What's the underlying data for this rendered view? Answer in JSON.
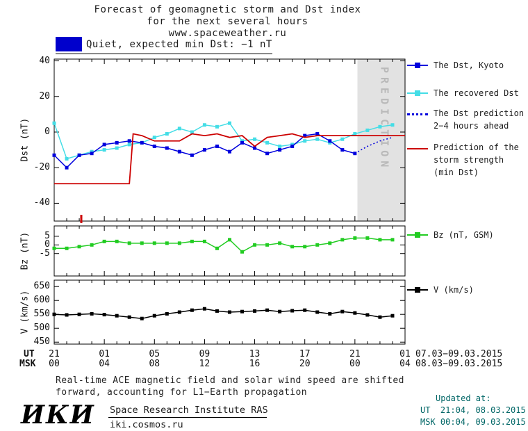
{
  "title": {
    "line1": "Forecast of geomagnetic storm and Dst index",
    "line2": "for the next several hours",
    "line3": "www.spaceweather.ru"
  },
  "banner": {
    "label": "Quiet, expected min Dst: −1 nT"
  },
  "colors": {
    "banner": "#0000cc",
    "kyoto": "#0000dd",
    "recovered": "#44dde6",
    "prediction_dotted": "#0000dd",
    "storm": "#cc0000",
    "bz": "#22cc22",
    "v": "#000000",
    "band": "#e2e2e2",
    "band_text": "#b9b9b9",
    "updated_text": "#006666"
  },
  "legend": {
    "dst_kyoto": "The Dst, Kyoto",
    "recovered": "The recovered Dst",
    "prediction": [
      "The Dst prediction",
      "2−4 hours ahead"
    ],
    "storm": [
      "Prediction of the",
      "storm strength",
      "(min Dst)"
    ],
    "bz": "Bz (nT, GSM)",
    "v": "V (km/s)"
  },
  "xaxis": {
    "ut_label": "UT",
    "msk_label": "MSK",
    "tick_hours": [
      0,
      4,
      8,
      12,
      16,
      20,
      24,
      28
    ],
    "ut_ticks": [
      "21",
      "01",
      "05",
      "09",
      "13",
      "17",
      "21",
      "01"
    ],
    "msk_ticks": [
      "00",
      "04",
      "08",
      "12",
      "16",
      "20",
      "00",
      "04"
    ],
    "ut_date": "07.03−09.03.2015",
    "msk_date": "08.03−09.03.2015"
  },
  "prediction_band": {
    "start_hour": 24.2,
    "end_hour": 28,
    "label": "PREDICTION"
  },
  "chart_data": [
    {
      "type": "line",
      "ylabel": "Dst (nT)",
      "ylim": [
        -50,
        41
      ],
      "yticks": [
        40,
        20,
        0,
        -20,
        -40
      ],
      "x_unit": "hours from 21:00 UT 07.03.2015",
      "series": [
        {
          "name": "The recovered Dst",
          "color_key": "recovered",
          "marker": true,
          "x": [
            0,
            1,
            2,
            3,
            4,
            5,
            6,
            7,
            8,
            9,
            10,
            11,
            12,
            13,
            14,
            15,
            16,
            17,
            18,
            19,
            20,
            21,
            22,
            23,
            24,
            25,
            26,
            27
          ],
          "values": [
            5,
            -15,
            -13,
            -11,
            -10,
            -9,
            -7,
            -6,
            -3,
            -1,
            2,
            0,
            4,
            3,
            5,
            -5,
            -4,
            -6,
            -8,
            -7,
            -5,
            -4,
            -6,
            -4,
            -1,
            1,
            3,
            4
          ]
        },
        {
          "name": "The Dst, Kyoto",
          "color_key": "kyoto",
          "marker": true,
          "x": [
            0,
            1,
            2,
            3,
            4,
            5,
            6,
            7,
            8,
            9,
            10,
            11,
            12,
            13,
            14,
            15,
            16,
            17,
            18,
            19,
            20,
            21,
            22,
            23,
            24
          ],
          "values": [
            -13,
            -20,
            -13,
            -12,
            -7,
            -6,
            -5,
            -6,
            -8,
            -9,
            -11,
            -13,
            -10,
            -8,
            -11,
            -6,
            -9,
            -12,
            -10,
            -8,
            -2,
            -1,
            -5,
            -10,
            -12
          ]
        },
        {
          "name": "The Dst prediction 2−4 hours ahead",
          "color_key": "prediction_dotted",
          "style": "dotted",
          "marker": false,
          "x": [
            24,
            25,
            26,
            27
          ],
          "values": [
            -12,
            -8,
            -5,
            -3
          ]
        },
        {
          "name": "Prediction of the storm strength (min Dst)",
          "color_key": "storm",
          "marker": false,
          "x": [
            0,
            6,
            6.3,
            7,
            8,
            9,
            10,
            11,
            12,
            13,
            14,
            15,
            16,
            17,
            18,
            19,
            20,
            21,
            22,
            23,
            24,
            28
          ],
          "values": [
            -29,
            -29,
            -1,
            -2,
            -5,
            -5,
            -5,
            -1,
            -2,
            -1,
            -3,
            -2,
            -8,
            -3,
            -2,
            -1,
            -3,
            -2,
            -2,
            -2,
            -2,
            -2
          ]
        }
      ]
    },
    {
      "type": "line",
      "ylabel": "Bz (nT)",
      "ylim": [
        -18,
        11
      ],
      "yticks": [
        5,
        0,
        -5
      ],
      "series": [
        {
          "name": "Bz (nT, GSM)",
          "color_key": "bz",
          "marker": true,
          "x": [
            0,
            1,
            2,
            3,
            4,
            5,
            6,
            7,
            8,
            9,
            10,
            11,
            12,
            13,
            14,
            15,
            16,
            17,
            18,
            19,
            20,
            21,
            22,
            23,
            24,
            25,
            26,
            27
          ],
          "values": [
            -2,
            -2,
            -1,
            0,
            2,
            2,
            1,
            1,
            1,
            1,
            1,
            2,
            2,
            -2,
            3,
            -4,
            0,
            0,
            1,
            -1,
            -1,
            0,
            1,
            3,
            4,
            4,
            3,
            3
          ]
        }
      ]
    },
    {
      "type": "line",
      "ylabel": "V (km/s)",
      "ylim": [
        443,
        673
      ],
      "yticks": [
        650,
        600,
        550,
        500,
        450
      ],
      "series": [
        {
          "name": "V (km/s)",
          "color_key": "v",
          "marker": true,
          "x": [
            0,
            1,
            2,
            3,
            4,
            5,
            6,
            7,
            8,
            9,
            10,
            11,
            12,
            13,
            14,
            15,
            16,
            17,
            18,
            19,
            20,
            21,
            22,
            23,
            24,
            25,
            26,
            27
          ],
          "values": [
            550,
            548,
            550,
            552,
            549,
            545,
            540,
            535,
            545,
            552,
            558,
            565,
            570,
            562,
            558,
            560,
            562,
            565,
            560,
            563,
            565,
            558,
            552,
            560,
            555,
            548,
            540,
            545
          ]
        }
      ]
    }
  ],
  "footer": {
    "line1": "Real-time ACE magnetic field and solar wind speed are shifted",
    "line2": "forward, accounting for L1−Earth propagation"
  },
  "updated": {
    "title": "Updated at:",
    "ut": "UT  21:04, 08.03.2015",
    "msk": "MSK 00:04, 09.03.2015"
  },
  "logo": {
    "text": "ИКИ",
    "institute": "Space Research Institute RAS",
    "site": "iki.cosmos.ru"
  }
}
